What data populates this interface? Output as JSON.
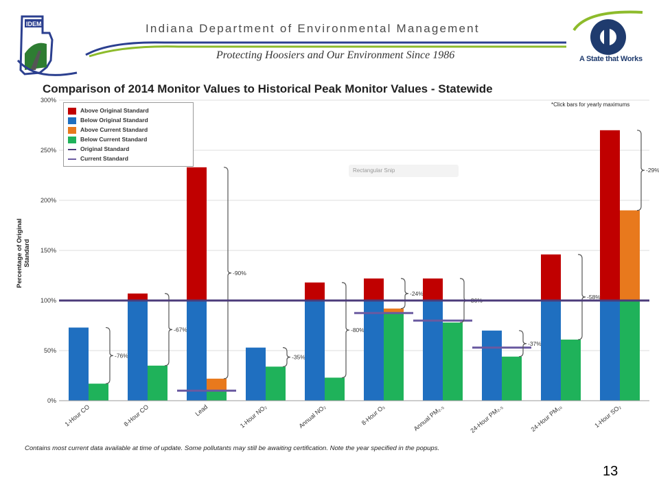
{
  "header": {
    "agency": "Indiana Department of Environmental Management",
    "tagline": "Protecting Hoosiers and Our Environment Since 1986",
    "idem_logo_text": "IDEM",
    "state_logo_text": "A State that Works",
    "colors": {
      "swoosh_blue": "#2b3f8f",
      "swoosh_green": "#8dbb2b"
    }
  },
  "note": "*Click bars for yearly maximums",
  "tooltip": "Rectangular Snip",
  "footnote": "Contains most current data available at time of update. Some pollutants may still be awaiting certification. Note the year specified in the popups.",
  "page_number": "13",
  "chart_data": {
    "type": "bar",
    "title": "Comparison of 2014 Monitor Values to Historical Peak Monitor Values - Statewide",
    "ylabel": "Percentage of Original Standard",
    "ylim": [
      0,
      300
    ],
    "yticks": [
      "0%",
      "50%",
      "100%",
      "150%",
      "200%",
      "250%",
      "300%"
    ],
    "legend_position": "top-left",
    "legend": [
      {
        "label": "Above Original Standard",
        "kind": "box",
        "color": "#c00000"
      },
      {
        "label": "Below Original Standard",
        "kind": "box",
        "color": "#1f6fc0"
      },
      {
        "label": "Above Current Standard",
        "kind": "box",
        "color": "#e8791d"
      },
      {
        "label": "Below Current Standard",
        "kind": "box",
        "color": "#1fb25a"
      },
      {
        "label": "Original Standard",
        "kind": "line",
        "color": "#4b3b7a"
      },
      {
        "label": "Current Standard",
        "kind": "line",
        "color": "#6a5aa0"
      }
    ],
    "original_standard": 100,
    "categories": [
      "1-Hour CO",
      "8-Hour CO",
      "Lead",
      "1-Hour NO₂",
      "Annual NO₂",
      "8-Hour O₃",
      "Annual PM₂.₅",
      "24-Hour PM₂.₅",
      "24-Hour PM₁₀",
      "1-Hour SO₂"
    ],
    "series": [
      {
        "name": "Historical Peak",
        "values": [
          73,
          107,
          233,
          53,
          118,
          122,
          122,
          70,
          146,
          270
        ]
      },
      {
        "name": "2014",
        "values": [
          17,
          35,
          22,
          34,
          23,
          92,
          78,
          44,
          61,
          190
        ]
      }
    ],
    "current_standard": [
      null,
      null,
      10,
      null,
      null,
      87.5,
      80,
      53,
      null,
      null
    ],
    "changes": [
      "-76%",
      "-67%",
      "-90%",
      "-35%",
      "-80%",
      "-24%",
      "-36%",
      "-37%",
      "-58%",
      "-29%"
    ]
  }
}
